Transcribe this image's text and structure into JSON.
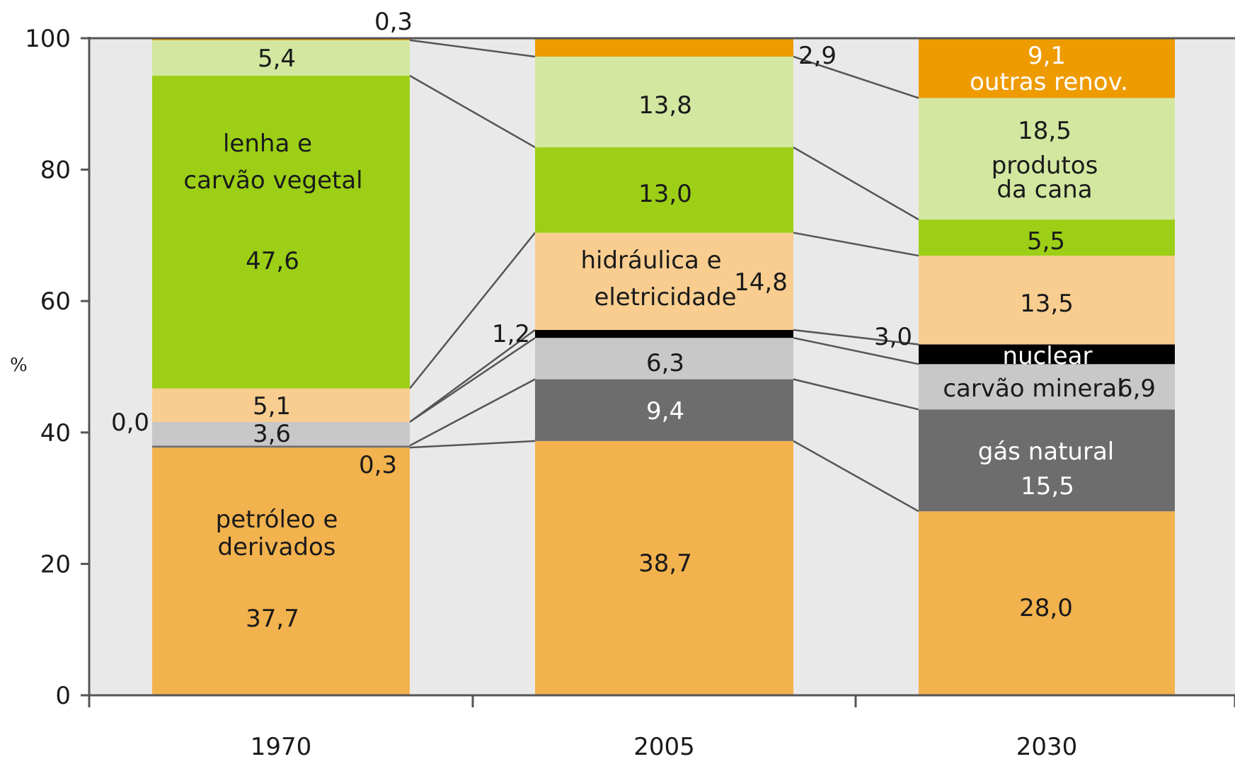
{
  "chart_data": {
    "type": "bar",
    "stacked": true,
    "ylabel": "%",
    "ylim": [
      0,
      100
    ],
    "y_ticks": [
      "0",
      "20",
      "40",
      "60",
      "80",
      "100"
    ],
    "grid": false,
    "categories": [
      "1970",
      "2005",
      "2030"
    ],
    "series": [
      {
        "key": "petroleo",
        "color": "#f2b24d",
        "values": [
          37.7,
          38.7,
          28.0
        ],
        "value_labels": [
          "37,7",
          "38,7",
          "28,0"
        ]
      },
      {
        "key": "gas",
        "color": "#6d6d6d",
        "values": [
          0.3,
          9.4,
          15.5
        ],
        "value_labels": [
          "0,3",
          "9,4",
          "15,5"
        ]
      },
      {
        "key": "carvao_mineral",
        "color": "#c8c8c8",
        "values": [
          3.6,
          6.3,
          6.9
        ],
        "value_labels": [
          "3,6",
          "6,3",
          "6,9"
        ]
      },
      {
        "key": "nuclear",
        "color": "#000000",
        "values": [
          0.0,
          1.2,
          3.0
        ],
        "value_labels": [
          "0,0",
          "1,2",
          "3,0"
        ]
      },
      {
        "key": "hidraulica",
        "color": "#f8cd8f",
        "values": [
          5.1,
          14.8,
          13.5
        ],
        "value_labels": [
          "5,1",
          "14,8",
          "13,5"
        ]
      },
      {
        "key": "lenha",
        "color": "#9ccf16",
        "values": [
          47.6,
          13.0,
          5.5
        ],
        "value_labels": [
          "47,6",
          "13,0",
          "5,5"
        ]
      },
      {
        "key": "cana",
        "color": "#d3e7a0",
        "values": [
          5.4,
          13.8,
          18.5
        ],
        "value_labels": [
          "5,4",
          "13,8",
          "18,5"
        ]
      },
      {
        "key": "outras",
        "color": "#ee9b00",
        "values": [
          0.3,
          2.9,
          9.1
        ],
        "value_labels": [
          "0,3",
          "2,9",
          "9,1"
        ]
      }
    ],
    "annotations": {
      "petroleo_1": "petróleo e",
      "petroleo_2": "derivados",
      "gas_natural": "gás natural",
      "carvao_mineral": "carvão mineral",
      "nuclear": "nuclear",
      "hidraulica_1": "hidráulica e",
      "hidraulica_2": "eletricidade",
      "lenha_1": "lenha e",
      "lenha_2": "carvão vegetal",
      "cana_1": "produtos",
      "cana_2": "da cana",
      "outras": "outras renov."
    },
    "colors": {
      "plot_background": "#e9e9e9",
      "axis": "#555555",
      "connector": "#555555"
    }
  }
}
